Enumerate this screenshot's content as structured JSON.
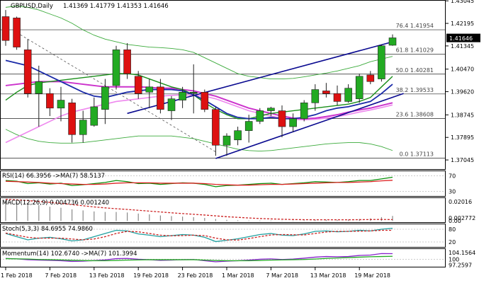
{
  "header": {
    "symbol": "GBPUSD,Daily",
    "ohlc": "1.41369 1.41779 1.41353 1.41646"
  },
  "colors": {
    "bull": "#22aa22",
    "bear": "#dd1111",
    "ma_green": "#1a8f1a",
    "ma_navy": "#1a2aa8",
    "ma_pink": "#cc33cc",
    "ma_magenta": "#ee88ee",
    "envelope": "#3aaa3a",
    "channel": "#0a0a90",
    "fib_line": "#222222",
    "rsi": "#0a8f0a",
    "rsi_ma": "#dd2222",
    "macd_hist": "#888888",
    "macd_signal": "#cc2222",
    "stoch_main": "#20a0a0",
    "stoch_signal": "#cc2222",
    "momentum": "#8822cc",
    "momentum_ma": "#22aa22",
    "price_tag_bg": "#000000"
  },
  "chart_data": [
    {
      "type": "candlestick",
      "title": "GBPUSD,Daily",
      "ylim": [
        1.367,
        1.4305
      ],
      "y_ticks": [
        "1.43045",
        "1.42195",
        "1.41345",
        "1.40470",
        "1.39620",
        "1.38745",
        "1.37895",
        "1.37045"
      ],
      "x_ticks": [
        "1 Feb 2018",
        "7 Feb 2018",
        "13 Feb 2018",
        "19 Feb 2018",
        "23 Feb 2018",
        "1 Mar 2018",
        "7 Mar 2018",
        "13 Mar 2018",
        "19 Mar 2018"
      ],
      "x_tick_index": [
        0,
        4,
        8,
        12,
        16,
        20,
        24,
        28,
        32
      ],
      "last_price": "1.41646",
      "candles": [
        {
          "o": 1.4245,
          "h": 1.427,
          "l": 1.4135,
          "c": 1.4155
        },
        {
          "o": 1.424,
          "h": 1.4245,
          "l": 1.412,
          "c": 1.413
        },
        {
          "o": 1.412,
          "h": 1.416,
          "l": 1.394,
          "c": 1.3955
        },
        {
          "o": 1.3955,
          "h": 1.406,
          "l": 1.383,
          "c": 1.4
        },
        {
          "o": 1.3955,
          "h": 1.3975,
          "l": 1.387,
          "c": 1.39
        },
        {
          "o": 1.39,
          "h": 1.398,
          "l": 1.385,
          "c": 1.393
        },
        {
          "o": 1.392,
          "h": 1.3935,
          "l": 1.377,
          "c": 1.38
        },
        {
          "o": 1.38,
          "h": 1.389,
          "l": 1.377,
          "c": 1.3855
        },
        {
          "o": 1.3835,
          "h": 1.394,
          "l": 1.383,
          "c": 1.3905
        },
        {
          "o": 1.3895,
          "h": 1.401,
          "l": 1.384,
          "c": 1.398
        },
        {
          "o": 1.3985,
          "h": 1.4135,
          "l": 1.397,
          "c": 1.412
        },
        {
          "o": 1.412,
          "h": 1.4145,
          "l": 1.401,
          "c": 1.403
        },
        {
          "o": 1.402,
          "h": 1.404,
          "l": 1.3935,
          "c": 1.3955
        },
        {
          "o": 1.396,
          "h": 1.401,
          "l": 1.39,
          "c": 1.398
        },
        {
          "o": 1.398,
          "h": 1.401,
          "l": 1.388,
          "c": 1.3895
        },
        {
          "o": 1.389,
          "h": 1.3945,
          "l": 1.3855,
          "c": 1.3935
        },
        {
          "o": 1.393,
          "h": 1.398,
          "l": 1.39,
          "c": 1.396
        },
        {
          "o": 1.396,
          "h": 1.4065,
          "l": 1.388,
          "c": 1.396
        },
        {
          "o": 1.396,
          "h": 1.397,
          "l": 1.3885,
          "c": 1.3895
        },
        {
          "o": 1.3895,
          "h": 1.3905,
          "l": 1.372,
          "c": 1.376
        },
        {
          "o": 1.376,
          "h": 1.3805,
          "l": 1.372,
          "c": 1.3795
        },
        {
          "o": 1.378,
          "h": 1.383,
          "l": 1.376,
          "c": 1.3815
        },
        {
          "o": 1.3815,
          "h": 1.3875,
          "l": 1.377,
          "c": 1.385
        },
        {
          "o": 1.385,
          "h": 1.39,
          "l": 1.384,
          "c": 1.389
        },
        {
          "o": 1.389,
          "h": 1.3905,
          "l": 1.387,
          "c": 1.39
        },
        {
          "o": 1.389,
          "h": 1.391,
          "l": 1.379,
          "c": 1.383
        },
        {
          "o": 1.383,
          "h": 1.388,
          "l": 1.381,
          "c": 1.386
        },
        {
          "o": 1.386,
          "h": 1.393,
          "l": 1.385,
          "c": 1.392
        },
        {
          "o": 1.392,
          "h": 1.399,
          "l": 1.389,
          "c": 1.397
        },
        {
          "o": 1.3965,
          "h": 1.3995,
          "l": 1.394,
          "c": 1.3955
        },
        {
          "o": 1.3955,
          "h": 1.3985,
          "l": 1.391,
          "c": 1.3925
        },
        {
          "o": 1.3925,
          "h": 1.399,
          "l": 1.392,
          "c": 1.3975
        },
        {
          "o": 1.3935,
          "h": 1.403,
          "l": 1.392,
          "c": 1.402
        },
        {
          "o": 1.4025,
          "h": 1.404,
          "l": 1.399,
          "c": 1.4
        },
        {
          "o": 1.401,
          "h": 1.414,
          "l": 1.4,
          "c": 1.4135
        },
        {
          "o": 1.4137,
          "h": 1.4178,
          "l": 1.4135,
          "c": 1.4165
        }
      ],
      "fib_levels": [
        {
          "label": "76.4  1.41954",
          "y": 1.41954
        },
        {
          "label": "61.8  1.41029",
          "y": 1.41029
        },
        {
          "label": "50.0  1.40281",
          "y": 1.40281
        },
        {
          "label": "38.2  1.39533",
          "y": 1.39533
        },
        {
          "label": "23.6  1.38608",
          "y": 1.38608
        },
        {
          "label": "0.0  1.37113",
          "y": 1.37113
        }
      ],
      "channel_upper": [
        {
          "i": 11,
          "y": 1.388
        },
        {
          "i": 35,
          "y": 1.415
        }
      ],
      "channel_lower": [
        {
          "i": 19,
          "y": 1.371
        },
        {
          "i": 36,
          "y": 1.3955
        }
      ],
      "diagonal": [
        {
          "i": 1,
          "y": 1.4185
        },
        {
          "i": 19,
          "y": 1.3735
        }
      ],
      "ma_green": [
        1.393,
        1.396,
        1.3985,
        1.3995,
        1.4,
        1.4005,
        1.401,
        1.4015,
        1.402,
        1.4025,
        1.403,
        1.403,
        1.4025,
        1.401,
        1.3995,
        1.398,
        1.397,
        1.395,
        1.392,
        1.3895,
        1.3875,
        1.386,
        1.386,
        1.387,
        1.388,
        1.3885,
        1.389,
        1.3895,
        1.39,
        1.3905,
        1.391,
        1.3915,
        1.3925,
        1.394,
        1.398,
        1.402
      ],
      "ma_navy": [
        1.408,
        1.407,
        1.406,
        1.404,
        1.402,
        1.4,
        1.398,
        1.396,
        1.3945,
        1.394,
        1.395,
        1.396,
        1.3965,
        1.397,
        1.397,
        1.397,
        1.3965,
        1.395,
        1.393,
        1.3905,
        1.388,
        1.3865,
        1.386,
        1.386,
        1.3865,
        1.386,
        1.386,
        1.3865,
        1.3875,
        1.389,
        1.39,
        1.3905,
        1.3915,
        1.3925,
        1.3955,
        1.399
      ],
      "ma_pink": [
        1.3985,
        1.399,
        1.3995,
        1.4,
        1.4,
        1.4,
        1.3995,
        1.399,
        1.3985,
        1.398,
        1.398,
        1.398,
        1.398,
        1.3978,
        1.3975,
        1.3975,
        1.397,
        1.3965,
        1.3955,
        1.3945,
        1.393,
        1.3915,
        1.39,
        1.389,
        1.388,
        1.387,
        1.3862,
        1.386,
        1.3862,
        1.3868,
        1.3875,
        1.3885,
        1.3893,
        1.39,
        1.391,
        1.392
      ],
      "ma_magenta": [
        1.377,
        1.379,
        1.381,
        1.383,
        1.385,
        1.387,
        1.3885,
        1.3895,
        1.3905,
        1.3915,
        1.3925,
        1.393,
        1.3935,
        1.394,
        1.3945,
        1.3948,
        1.395,
        1.3948,
        1.3945,
        1.3935,
        1.392,
        1.3905,
        1.389,
        1.388,
        1.387,
        1.3862,
        1.3858,
        1.3856,
        1.3858,
        1.3862,
        1.3868,
        1.3876,
        1.3885,
        1.3893,
        1.3902,
        1.3912
      ],
      "env_upper": [
        1.428,
        1.4285,
        1.428,
        1.427,
        1.4255,
        1.424,
        1.422,
        1.4195,
        1.4175,
        1.416,
        1.415,
        1.414,
        1.4135,
        1.413,
        1.4128,
        1.4125,
        1.412,
        1.411,
        1.409,
        1.407,
        1.405,
        1.403,
        1.402,
        1.4015,
        1.401,
        1.401,
        1.4012,
        1.4018,
        1.4025,
        1.4032,
        1.404,
        1.405,
        1.406,
        1.4075,
        1.4085,
        1.4095
      ],
      "env_lower": [
        1.382,
        1.38,
        1.3785,
        1.3775,
        1.377,
        1.3768,
        1.3768,
        1.377,
        1.3775,
        1.378,
        1.3785,
        1.379,
        1.3795,
        1.3795,
        1.3795,
        1.3795,
        1.379,
        1.3785,
        1.3775,
        1.3765,
        1.3755,
        1.3745,
        1.374,
        1.3738,
        1.374,
        1.3745,
        1.375,
        1.3755,
        1.376,
        1.3765,
        1.3768,
        1.377,
        1.377,
        1.3765,
        1.3755,
        1.374
      ]
    },
    {
      "type": "line",
      "title": "RSI(14) 66.3956 ->MA(7) 58.5137",
      "ylim": [
        20,
        80
      ],
      "y_ticks": [
        "70",
        "30"
      ],
      "series": [
        {
          "name": "RSI",
          "values": [
            58,
            56,
            50,
            52,
            49,
            51,
            45,
            47,
            50,
            53,
            58,
            55,
            50,
            51,
            48,
            50,
            52,
            51,
            48,
            42,
            45,
            46,
            48,
            50,
            51,
            48,
            50,
            52,
            55,
            54,
            53,
            55,
            58,
            58,
            62,
            66.4
          ]
        },
        {
          "name": "MA",
          "values": [
            56,
            55,
            54,
            53,
            51,
            50,
            49,
            48,
            48,
            49,
            51,
            52,
            52,
            52,
            51,
            51,
            51,
            51,
            50,
            48,
            47,
            46,
            46,
            47,
            48,
            48,
            49,
            50,
            51,
            52,
            53,
            53,
            54,
            55,
            57,
            58.5
          ]
        }
      ]
    },
    {
      "type": "bar",
      "title": "MACD(12,26,9) 0.004736 0.001240",
      "ylim": [
        -0.0005,
        0.021
      ],
      "y_ticks": [
        "0.02016",
        "0.002772",
        "0.00"
      ],
      "series": [
        {
          "name": "MACD",
          "values": [
            0.019,
            0.018,
            0.016,
            0.015,
            0.0135,
            0.0125,
            0.011,
            0.01,
            0.009,
            0.0085,
            0.0085,
            0.008,
            0.007,
            0.0062,
            0.0052,
            0.0046,
            0.0041,
            0.0036,
            0.0028,
            0.0018,
            0.001,
            0.0006,
            0.0004,
            0.0004,
            0.0004,
            0.0003,
            0.0003,
            0.0006,
            0.001,
            0.0011,
            0.001,
            0.0012,
            0.0018,
            0.0024,
            0.0036,
            0.004736
          ]
        },
        {
          "name": "Signal",
          "values": [
            0.0205,
            0.02,
            0.0193,
            0.0185,
            0.0176,
            0.0166,
            0.0155,
            0.0144,
            0.0133,
            0.0124,
            0.0116,
            0.0109,
            0.0101,
            0.0093,
            0.0085,
            0.0077,
            0.007,
            0.0063,
            0.0056,
            0.0048,
            0.004,
            0.0034,
            0.0028,
            0.0023,
            0.0019,
            0.0016,
            0.0013,
            0.0012,
            0.0011,
            0.0011,
            0.0011,
            0.0011,
            0.0012,
            0.0013,
            0.0014,
            0.00124
          ]
        }
      ]
    },
    {
      "type": "line",
      "title": "Stoch(5,3,3) 84.6955 74.9860",
      "ylim": [
        0,
        100
      ],
      "y_ticks": [
        "80",
        "20"
      ],
      "series": [
        {
          "name": "Main",
          "values": [
            60,
            45,
            30,
            38,
            42,
            35,
            25,
            30,
            45,
            60,
            75,
            72,
            58,
            52,
            45,
            50,
            55,
            52,
            42,
            22,
            28,
            35,
            45,
            55,
            60,
            52,
            50,
            58,
            70,
            72,
            68,
            70,
            75,
            72,
            80,
            84.7
          ]
        },
        {
          "name": "Signal",
          "values": [
            62,
            52,
            42,
            38,
            38,
            38,
            34,
            30,
            34,
            45,
            60,
            70,
            68,
            60,
            52,
            49,
            50,
            52,
            50,
            38,
            30,
            29,
            36,
            45,
            53,
            55,
            54,
            53,
            60,
            67,
            70,
            70,
            71,
            72,
            75,
            75.0
          ]
        }
      ]
    },
    {
      "type": "line",
      "title": "Momentum(14) 102.6740 ->MA(7) 101.3994",
      "ylim": [
        96.8,
        104.5
      ],
      "y_ticks": [
        "104.1564",
        "100",
        "97.2597"
      ],
      "series": [
        {
          "name": "Momentum",
          "values": [
            100.4,
            100.2,
            99.8,
            99.6,
            99.5,
            99.3,
            99.0,
            99.1,
            99.4,
            99.7,
            100.3,
            100.4,
            100.0,
            99.8,
            99.5,
            99.6,
            99.8,
            99.9,
            99.3,
            98.8,
            99.1,
            99.3,
            99.6,
            100.0,
            100.2,
            99.9,
            100.1,
            100.5,
            101.0,
            101.3,
            101.2,
            101.3,
            101.8,
            102.0,
            102.7,
            102.67
          ]
        },
        {
          "name": "MA",
          "values": [
            100.3,
            100.2,
            100.1,
            99.9,
            99.8,
            99.7,
            99.5,
            99.4,
            99.3,
            99.3,
            99.4,
            99.6,
            99.7,
            99.8,
            99.8,
            99.8,
            99.8,
            99.8,
            99.6,
            99.4,
            99.3,
            99.3,
            99.3,
            99.4,
            99.6,
            99.7,
            99.8,
            99.9,
            100.1,
            100.4,
            100.6,
            100.8,
            101.0,
            101.2,
            101.3,
            101.3994
          ]
        }
      ]
    }
  ]
}
